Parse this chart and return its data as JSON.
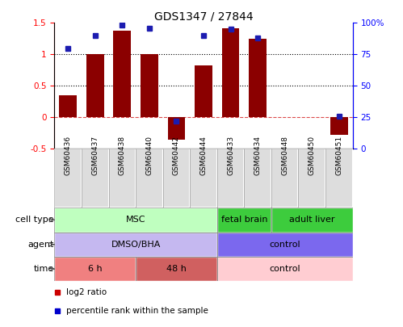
{
  "title": "GDS1347 / 27844",
  "samples": [
    "GSM60436",
    "GSM60437",
    "GSM60438",
    "GSM60440",
    "GSM60442",
    "GSM60444",
    "GSM60433",
    "GSM60434",
    "GSM60448",
    "GSM60450",
    "GSM60451"
  ],
  "log2_ratio": [
    0.35,
    1.01,
    1.38,
    1.01,
    -0.35,
    0.82,
    1.41,
    1.25,
    0.0,
    0.0,
    -0.28
  ],
  "percentile_rank": [
    80,
    90,
    98,
    96,
    22,
    90,
    95,
    88,
    0,
    0,
    26
  ],
  "bar_color": "#8B0000",
  "dot_color": "#1C1CB0",
  "ylim_left": [
    -0.5,
    1.5
  ],
  "ylim_right": [
    0,
    100
  ],
  "cell_type_groups": [
    {
      "label": "MSC",
      "start": 0,
      "end": 6,
      "color": "#BFFFBF"
    },
    {
      "label": "fetal brain",
      "start": 6,
      "end": 8,
      "color": "#3DCC3D"
    },
    {
      "label": "adult liver",
      "start": 8,
      "end": 11,
      "color": "#3DCC3D"
    }
  ],
  "agent_groups": [
    {
      "label": "DMSO/BHA",
      "start": 0,
      "end": 6,
      "color": "#C5B8F0"
    },
    {
      "label": "control",
      "start": 6,
      "end": 11,
      "color": "#7B68EE"
    }
  ],
  "time_groups": [
    {
      "label": "6 h",
      "start": 0,
      "end": 3,
      "color": "#F08080"
    },
    {
      "label": "48 h",
      "start": 3,
      "end": 6,
      "color": "#D06060"
    },
    {
      "label": "control",
      "start": 6,
      "end": 11,
      "color": "#FFCDD2"
    }
  ],
  "legend_items": [
    {
      "label": "log2 ratio",
      "color": "#CC0000"
    },
    {
      "label": "percentile rank within the sample",
      "color": "#0000CC"
    }
  ]
}
